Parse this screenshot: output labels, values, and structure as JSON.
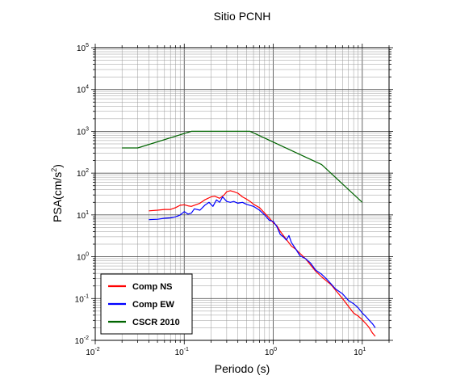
{
  "chart_data": {
    "type": "line",
    "title": "Sitio PCNH",
    "xlabel": "Periodo (s)",
    "ylabel": {
      "prefix": "PSA(cm/s",
      "sup": "2",
      "suffix": ")"
    },
    "xscale": "log",
    "yscale": "log",
    "xlim": [
      0.01,
      20
    ],
    "ylim": [
      0.01,
      100000
    ],
    "grid": true,
    "legend_position": "bottom-left",
    "x_ticks": [
      {
        "value": 0.01,
        "base": "10",
        "exp": "-2"
      },
      {
        "value": 0.1,
        "base": "10",
        "exp": "-1"
      },
      {
        "value": 1,
        "base": "10",
        "exp": "0"
      },
      {
        "value": 10,
        "base": "10",
        "exp": "1"
      }
    ],
    "y_ticks": [
      {
        "value": 0.01,
        "base": "10",
        "exp": "-2"
      },
      {
        "value": 0.1,
        "base": "10",
        "exp": "-1"
      },
      {
        "value": 1,
        "base": "10",
        "exp": "0"
      },
      {
        "value": 10,
        "base": "10",
        "exp": "1"
      },
      {
        "value": 100,
        "base": "10",
        "exp": "2"
      },
      {
        "value": 1000,
        "base": "10",
        "exp": "3"
      },
      {
        "value": 10000,
        "base": "10",
        "exp": "4"
      },
      {
        "value": 100000,
        "base": "10",
        "exp": "5"
      }
    ],
    "series": [
      {
        "name": "Comp NS",
        "color": "#ff0000",
        "points": [
          [
            0.04,
            12.5
          ],
          [
            0.05,
            13
          ],
          [
            0.06,
            13.5
          ],
          [
            0.07,
            13.5
          ],
          [
            0.08,
            15
          ],
          [
            0.09,
            17
          ],
          [
            0.1,
            17.5
          ],
          [
            0.11,
            16.5
          ],
          [
            0.12,
            16
          ],
          [
            0.13,
            17
          ],
          [
            0.15,
            19
          ],
          [
            0.17,
            23
          ],
          [
            0.2,
            27
          ],
          [
            0.22,
            28
          ],
          [
            0.25,
            25
          ],
          [
            0.28,
            30
          ],
          [
            0.3,
            36
          ],
          [
            0.33,
            38
          ],
          [
            0.36,
            36
          ],
          [
            0.4,
            33
          ],
          [
            0.45,
            27
          ],
          [
            0.5,
            24
          ],
          [
            0.55,
            21
          ],
          [
            0.6,
            18
          ],
          [
            0.7,
            15
          ],
          [
            0.8,
            11
          ],
          [
            0.9,
            8.5
          ],
          [
            1.0,
            6.5
          ],
          [
            1.1,
            5.5
          ],
          [
            1.2,
            4.0
          ],
          [
            1.4,
            2.6
          ],
          [
            1.6,
            1.8
          ],
          [
            1.8,
            1.5
          ],
          [
            2.0,
            1.2
          ],
          [
            2.3,
            0.9
          ],
          [
            2.6,
            0.65
          ],
          [
            3.0,
            0.45
          ],
          [
            3.5,
            0.33
          ],
          [
            4.0,
            0.26
          ],
          [
            4.5,
            0.21
          ],
          [
            5.0,
            0.16
          ],
          [
            6.0,
            0.1
          ],
          [
            7.0,
            0.065
          ],
          [
            8.0,
            0.045
          ],
          [
            9.0,
            0.038
          ],
          [
            10.0,
            0.031
          ],
          [
            11.0,
            0.025
          ],
          [
            12.0,
            0.02
          ],
          [
            13.0,
            0.015
          ],
          [
            14.0,
            0.0125
          ]
        ]
      },
      {
        "name": "Comp EW",
        "color": "#0000ff",
        "points": [
          [
            0.04,
            7.7
          ],
          [
            0.05,
            7.9
          ],
          [
            0.06,
            8.3
          ],
          [
            0.07,
            8.5
          ],
          [
            0.08,
            9.0
          ],
          [
            0.09,
            10.0
          ],
          [
            0.1,
            12.0
          ],
          [
            0.11,
            10.5
          ],
          [
            0.12,
            11.0
          ],
          [
            0.13,
            14.0
          ],
          [
            0.15,
            13.0
          ],
          [
            0.17,
            17.0
          ],
          [
            0.19,
            20.0
          ],
          [
            0.21,
            16.0
          ],
          [
            0.23,
            23.0
          ],
          [
            0.25,
            20.0
          ],
          [
            0.27,
            27.0
          ],
          [
            0.3,
            21.0
          ],
          [
            0.33,
            20.0
          ],
          [
            0.36,
            21.0
          ],
          [
            0.4,
            19.0
          ],
          [
            0.45,
            20.0
          ],
          [
            0.5,
            18.0
          ],
          [
            0.6,
            16.0
          ],
          [
            0.7,
            13.0
          ],
          [
            0.8,
            10.0
          ],
          [
            0.9,
            7.5
          ],
          [
            1.0,
            7.0
          ],
          [
            1.1,
            5.2
          ],
          [
            1.2,
            3.4
          ],
          [
            1.3,
            3.0
          ],
          [
            1.4,
            2.5
          ],
          [
            1.5,
            3.2
          ],
          [
            1.6,
            2.2
          ],
          [
            1.8,
            1.5
          ],
          [
            2.0,
            1.05
          ],
          [
            2.3,
            0.9
          ],
          [
            2.6,
            0.72
          ],
          [
            3.0,
            0.48
          ],
          [
            3.5,
            0.38
          ],
          [
            4.0,
            0.29
          ],
          [
            4.5,
            0.22
          ],
          [
            5.0,
            0.17
          ],
          [
            6.0,
            0.13
          ],
          [
            7.0,
            0.09
          ],
          [
            8.0,
            0.075
          ],
          [
            9.0,
            0.06
          ],
          [
            10.0,
            0.045
          ],
          [
            11.0,
            0.037
          ],
          [
            12.0,
            0.03
          ],
          [
            13.0,
            0.025
          ],
          [
            14.0,
            0.02
          ]
        ]
      },
      {
        "name": "CSCR 2010",
        "color": "#006400",
        "points": [
          [
            0.02,
            400
          ],
          [
            0.03,
            400
          ],
          [
            0.12,
            1000
          ],
          [
            0.55,
            1000
          ],
          [
            3.5,
            160
          ],
          [
            10.0,
            20
          ]
        ]
      }
    ]
  }
}
